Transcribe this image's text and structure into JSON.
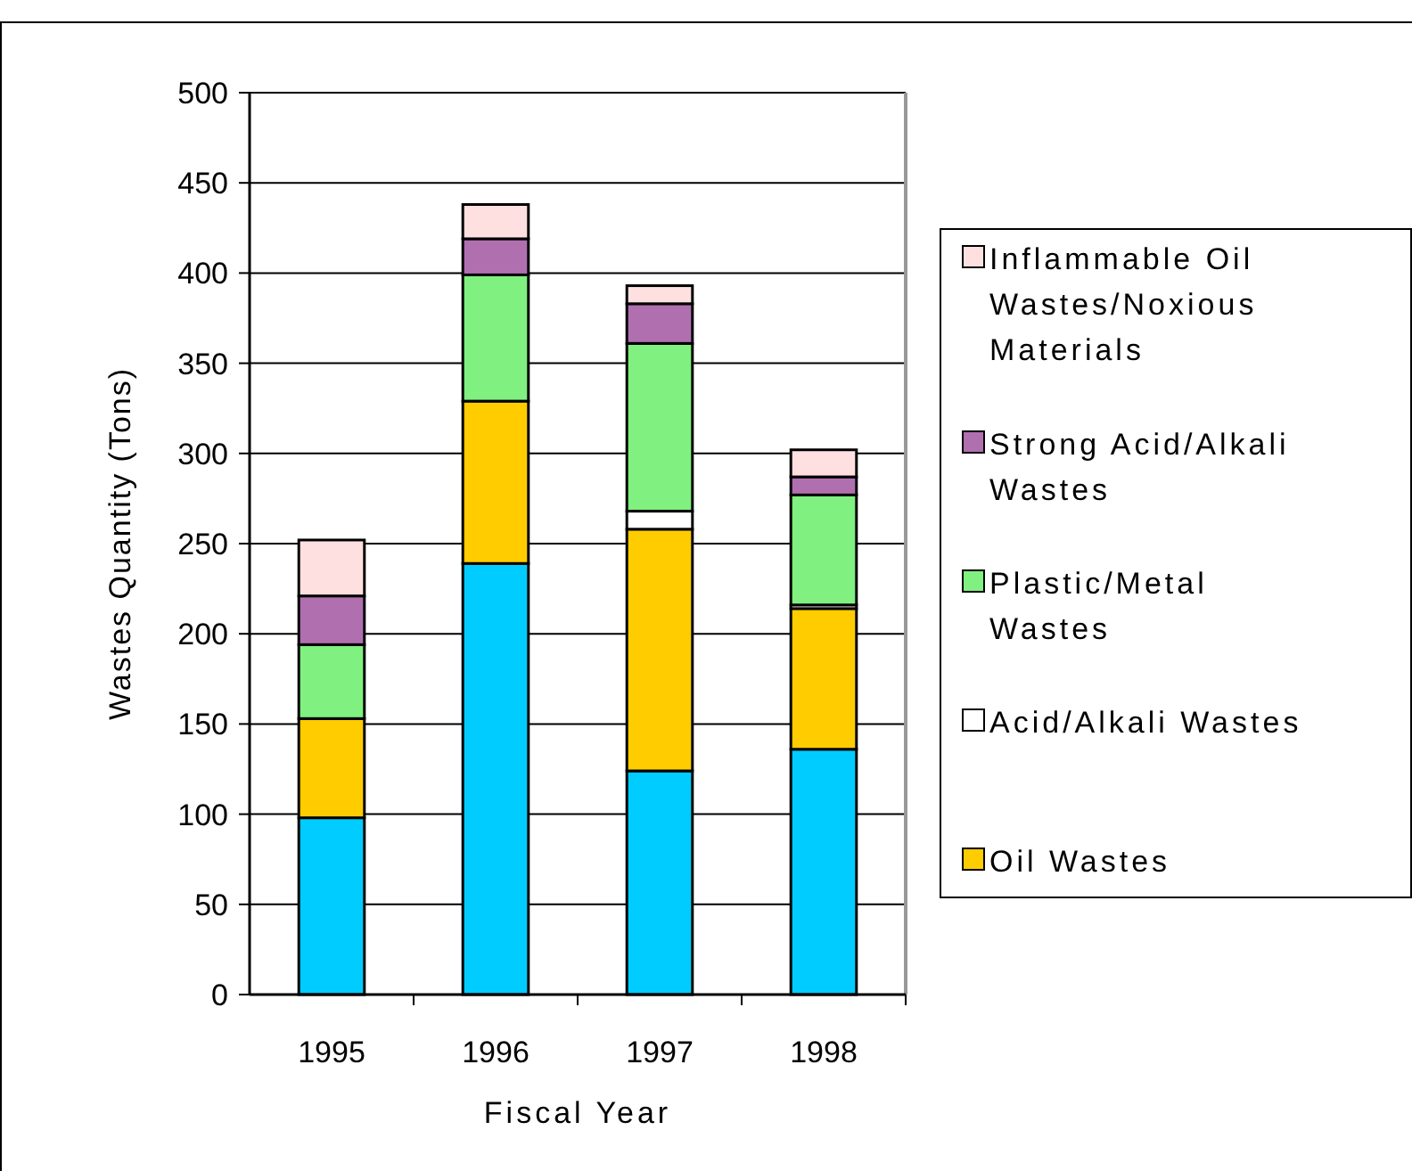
{
  "chart_data": {
    "type": "bar",
    "stacked": true,
    "xlabel": "Fiscal Year",
    "ylabel": "Wastes Quantity (Tons)",
    "categories": [
      "1995",
      "1996",
      "1997",
      "1998"
    ],
    "series": [
      {
        "color": "#00ccff",
        "values": [
          98,
          239,
          124,
          136
        ]
      },
      {
        "name": "Oil Wastes",
        "color": "#ffcc00",
        "values": [
          55,
          90,
          134,
          78
        ]
      },
      {
        "name": "Acid/Alkali Wastes",
        "color": "#ffffff",
        "values": [
          0,
          0,
          10,
          2
        ]
      },
      {
        "name": "Plastic/Metal Wastes",
        "color": "#80f080",
        "values": [
          41,
          70,
          93,
          61
        ]
      },
      {
        "name": "Strong Acid/Alkali Wastes",
        "color": "#b070b0",
        "values": [
          27,
          20,
          22,
          10
        ]
      },
      {
        "name": "Inflammable Oil Wastes/Noxious Materials",
        "color": "#ffe0e0",
        "values": [
          31,
          19,
          10,
          15
        ]
      }
    ],
    "ylim": [
      0,
      500
    ],
    "yticks": [
      0,
      50,
      100,
      150,
      200,
      250,
      300,
      350,
      400,
      450,
      500
    ],
    "grid": "y",
    "legend": "right"
  }
}
